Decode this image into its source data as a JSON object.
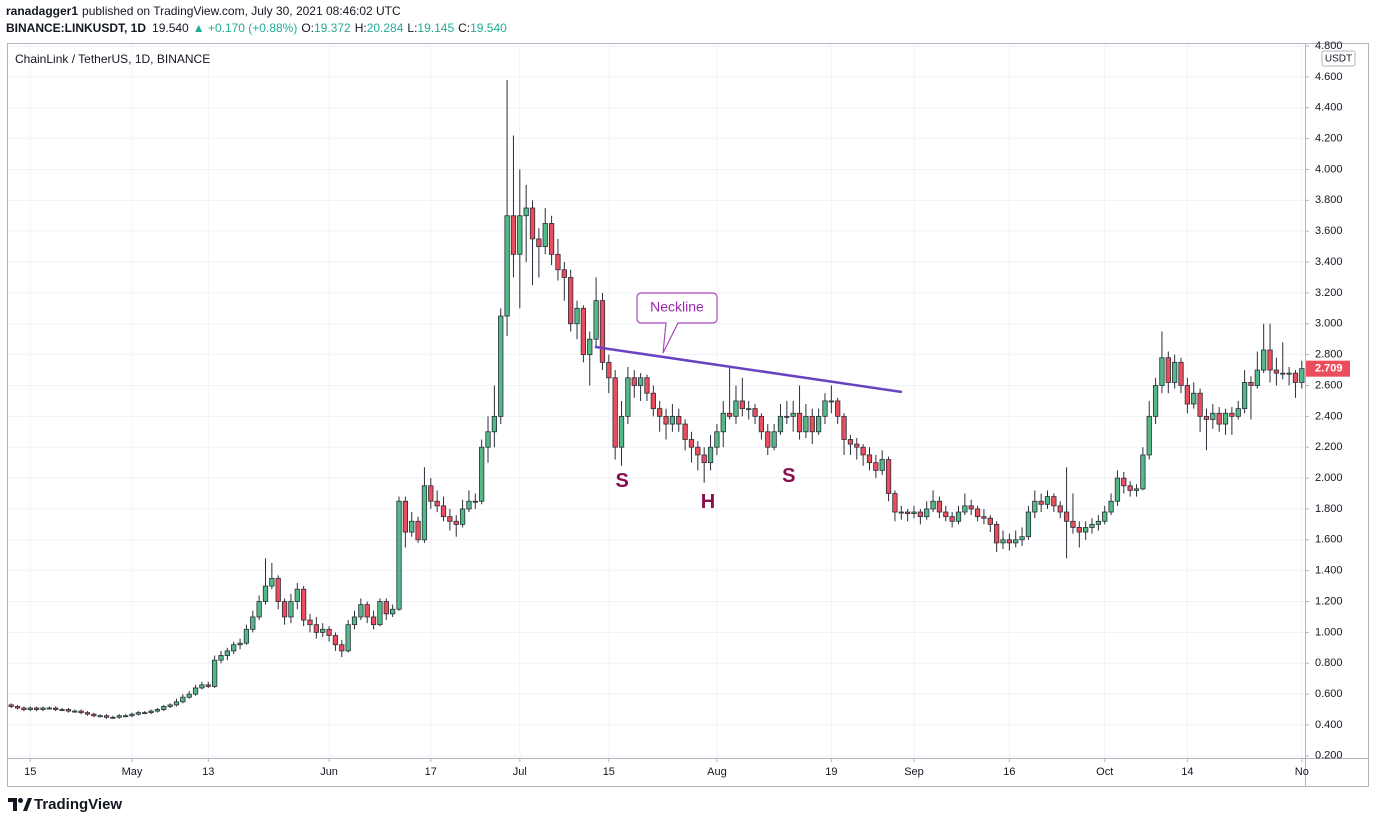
{
  "header": {
    "author": "ranadagger1",
    "published": "published on TradingView.com, July 30, 2021 08:46:02 UTC",
    "symbol": "BINANCE:LINKUSDT, 1D",
    "last": "19.540",
    "change": "▲ +0.170 (+0.88%)",
    "o_label": "O:",
    "o": "19.372",
    "h_label": "H:",
    "h": "20.284",
    "l_label": "L:",
    "l": "19.145",
    "c_label": "C:",
    "c": "19.540"
  },
  "chart_data": {
    "type": "candlestick",
    "title": "ChainLink / TetherUS, 1D, BINANCE",
    "currency": "USDT",
    "up_color": "#53b987",
    "down_color": "#eb4d5c",
    "grid": true,
    "candles": [
      [
        0.53,
        0.54,
        0.51,
        0.52
      ],
      [
        0.52,
        0.53,
        0.5,
        0.51
      ],
      [
        0.51,
        0.52,
        0.49,
        0.5
      ],
      [
        0.5,
        0.52,
        0.49,
        0.51
      ],
      [
        0.51,
        0.52,
        0.49,
        0.5
      ],
      [
        0.5,
        0.52,
        0.49,
        0.51
      ],
      [
        0.51,
        0.52,
        0.5,
        0.51
      ],
      [
        0.51,
        0.52,
        0.49,
        0.5
      ],
      [
        0.5,
        0.51,
        0.49,
        0.5
      ],
      [
        0.5,
        0.51,
        0.48,
        0.49
      ],
      [
        0.49,
        0.5,
        0.48,
        0.49
      ],
      [
        0.49,
        0.5,
        0.47,
        0.48
      ],
      [
        0.48,
        0.49,
        0.46,
        0.47
      ],
      [
        0.47,
        0.48,
        0.45,
        0.46
      ],
      [
        0.46,
        0.47,
        0.45,
        0.46
      ],
      [
        0.46,
        0.47,
        0.44,
        0.45
      ],
      [
        0.45,
        0.46,
        0.44,
        0.45
      ],
      [
        0.45,
        0.47,
        0.44,
        0.46
      ],
      [
        0.46,
        0.47,
        0.45,
        0.46
      ],
      [
        0.46,
        0.48,
        0.45,
        0.47
      ],
      [
        0.47,
        0.49,
        0.46,
        0.48
      ],
      [
        0.48,
        0.49,
        0.47,
        0.48
      ],
      [
        0.48,
        0.5,
        0.47,
        0.49
      ],
      [
        0.49,
        0.51,
        0.48,
        0.5
      ],
      [
        0.5,
        0.53,
        0.49,
        0.52
      ],
      [
        0.52,
        0.54,
        0.51,
        0.53
      ],
      [
        0.53,
        0.57,
        0.52,
        0.55
      ],
      [
        0.55,
        0.6,
        0.54,
        0.58
      ],
      [
        0.58,
        0.62,
        0.57,
        0.6
      ],
      [
        0.6,
        0.66,
        0.59,
        0.64
      ],
      [
        0.64,
        0.68,
        0.63,
        0.66
      ],
      [
        0.66,
        0.68,
        0.64,
        0.65
      ],
      [
        0.65,
        0.85,
        0.64,
        0.82
      ],
      [
        0.82,
        0.88,
        0.8,
        0.85
      ],
      [
        0.85,
        0.9,
        0.82,
        0.88
      ],
      [
        0.88,
        0.94,
        0.86,
        0.92
      ],
      [
        0.92,
        0.96,
        0.89,
        0.93
      ],
      [
        0.93,
        1.05,
        0.92,
        1.02
      ],
      [
        1.02,
        1.14,
        1.0,
        1.1
      ],
      [
        1.1,
        1.24,
        1.08,
        1.2
      ],
      [
        1.2,
        1.48,
        1.18,
        1.3
      ],
      [
        1.3,
        1.45,
        1.28,
        1.35
      ],
      [
        1.35,
        1.37,
        1.15,
        1.2
      ],
      [
        1.2,
        1.22,
        1.05,
        1.1
      ],
      [
        1.1,
        1.25,
        1.06,
        1.2
      ],
      [
        1.2,
        1.32,
        1.15,
        1.28
      ],
      [
        1.28,
        1.3,
        1.04,
        1.08
      ],
      [
        1.08,
        1.12,
        1.0,
        1.05
      ],
      [
        1.05,
        1.1,
        0.96,
        1.0
      ],
      [
        1.0,
        1.06,
        0.97,
        1.02
      ],
      [
        1.02,
        1.04,
        0.94,
        0.98
      ],
      [
        0.98,
        1.0,
        0.88,
        0.92
      ],
      [
        0.92,
        0.95,
        0.84,
        0.88
      ],
      [
        0.88,
        1.08,
        0.87,
        1.05
      ],
      [
        1.05,
        1.14,
        1.02,
        1.1
      ],
      [
        1.1,
        1.22,
        1.08,
        1.18
      ],
      [
        1.18,
        1.2,
        1.06,
        1.1
      ],
      [
        1.1,
        1.14,
        1.02,
        1.05
      ],
      [
        1.05,
        1.22,
        1.04,
        1.2
      ],
      [
        1.2,
        1.22,
        1.08,
        1.12
      ],
      [
        1.12,
        1.18,
        1.1,
        1.15
      ],
      [
        1.15,
        1.88,
        1.14,
        1.85
      ],
      [
        1.85,
        1.88,
        1.55,
        1.65
      ],
      [
        1.65,
        1.78,
        1.62,
        1.72
      ],
      [
        1.72,
        1.75,
        1.58,
        1.6
      ],
      [
        1.6,
        2.07,
        1.58,
        1.95
      ],
      [
        1.95,
        2.0,
        1.8,
        1.85
      ],
      [
        1.85,
        1.92,
        1.78,
        1.82
      ],
      [
        1.82,
        1.88,
        1.72,
        1.75
      ],
      [
        1.75,
        1.8,
        1.66,
        1.72
      ],
      [
        1.72,
        1.76,
        1.62,
        1.7
      ],
      [
        1.7,
        1.86,
        1.68,
        1.8
      ],
      [
        1.8,
        1.92,
        1.78,
        1.85
      ],
      [
        1.85,
        1.9,
        1.8,
        1.85
      ],
      [
        1.85,
        2.25,
        1.83,
        2.2
      ],
      [
        2.2,
        2.4,
        2.1,
        2.3
      ],
      [
        2.3,
        2.6,
        2.2,
        2.4
      ],
      [
        2.4,
        3.1,
        2.35,
        3.05
      ],
      [
        3.05,
        4.58,
        2.92,
        3.7
      ],
      [
        3.7,
        4.22,
        3.3,
        3.45
      ],
      [
        3.45,
        4.0,
        3.1,
        3.7
      ],
      [
        3.7,
        3.9,
        3.4,
        3.75
      ],
      [
        3.75,
        3.8,
        3.25,
        3.55
      ],
      [
        3.55,
        3.62,
        3.3,
        3.5
      ],
      [
        3.5,
        3.75,
        3.45,
        3.65
      ],
      [
        3.65,
        3.7,
        3.38,
        3.45
      ],
      [
        3.45,
        3.55,
        3.28,
        3.35
      ],
      [
        3.35,
        3.4,
        3.15,
        3.3
      ],
      [
        3.3,
        3.35,
        2.95,
        3.0
      ],
      [
        3.0,
        3.15,
        2.9,
        3.1
      ],
      [
        3.1,
        3.12,
        2.75,
        2.8
      ],
      [
        2.8,
        2.95,
        2.6,
        2.9
      ],
      [
        2.9,
        3.3,
        2.85,
        3.15
      ],
      [
        3.15,
        3.2,
        2.7,
        2.75
      ],
      [
        2.75,
        2.8,
        2.55,
        2.65
      ],
      [
        2.65,
        2.7,
        2.12,
        2.2
      ],
      [
        2.2,
        2.5,
        2.08,
        2.4
      ],
      [
        2.4,
        2.72,
        2.35,
        2.65
      ],
      [
        2.65,
        2.7,
        2.52,
        2.6
      ],
      [
        2.6,
        2.68,
        2.5,
        2.65
      ],
      [
        2.65,
        2.67,
        2.5,
        2.55
      ],
      [
        2.55,
        2.6,
        2.4,
        2.45
      ],
      [
        2.45,
        2.5,
        2.3,
        2.4
      ],
      [
        2.4,
        2.45,
        2.25,
        2.35
      ],
      [
        2.35,
        2.48,
        2.3,
        2.4
      ],
      [
        2.4,
        2.45,
        2.3,
        2.35
      ],
      [
        2.35,
        2.38,
        2.18,
        2.25
      ],
      [
        2.25,
        2.3,
        2.1,
        2.2
      ],
      [
        2.2,
        2.24,
        2.05,
        2.15
      ],
      [
        2.15,
        2.2,
        1.97,
        2.1
      ],
      [
        2.1,
        2.28,
        2.05,
        2.2
      ],
      [
        2.2,
        2.35,
        2.15,
        2.3
      ],
      [
        2.3,
        2.5,
        2.2,
        2.42
      ],
      [
        2.42,
        2.72,
        2.38,
        2.4
      ],
      [
        2.4,
        2.6,
        2.35,
        2.5
      ],
      [
        2.5,
        2.65,
        2.4,
        2.45
      ],
      [
        2.45,
        2.5,
        2.38,
        2.45
      ],
      [
        2.45,
        2.48,
        2.35,
        2.4
      ],
      [
        2.4,
        2.42,
        2.25,
        2.3
      ],
      [
        2.3,
        2.35,
        2.15,
        2.2
      ],
      [
        2.2,
        2.35,
        2.18,
        2.3
      ],
      [
        2.3,
        2.48,
        2.28,
        2.4
      ],
      [
        2.4,
        2.5,
        2.35,
        2.4
      ],
      [
        2.4,
        2.5,
        2.3,
        2.42
      ],
      [
        2.42,
        2.6,
        2.25,
        2.3
      ],
      [
        2.3,
        2.48,
        2.26,
        2.4
      ],
      [
        2.4,
        2.45,
        2.22,
        2.3
      ],
      [
        2.3,
        2.45,
        2.28,
        2.4
      ],
      [
        2.4,
        2.55,
        2.35,
        2.5
      ],
      [
        2.5,
        2.6,
        2.42,
        2.5
      ],
      [
        2.5,
        2.52,
        2.35,
        2.4
      ],
      [
        2.4,
        2.42,
        2.15,
        2.25
      ],
      [
        2.25,
        2.28,
        2.15,
        2.22
      ],
      [
        2.22,
        2.26,
        2.12,
        2.2
      ],
      [
        2.2,
        2.22,
        2.08,
        2.15
      ],
      [
        2.15,
        2.2,
        2.05,
        2.1
      ],
      [
        2.1,
        2.15,
        2.0,
        2.05
      ],
      [
        2.05,
        2.18,
        2.02,
        2.12
      ],
      [
        2.12,
        2.14,
        1.85,
        1.9
      ],
      [
        1.9,
        1.92,
        1.72,
        1.78
      ],
      [
        1.78,
        1.82,
        1.73,
        1.78
      ],
      [
        1.78,
        1.8,
        1.72,
        1.77
      ],
      [
        1.77,
        1.82,
        1.74,
        1.78
      ],
      [
        1.78,
        1.8,
        1.7,
        1.75
      ],
      [
        1.75,
        1.85,
        1.73,
        1.8
      ],
      [
        1.8,
        1.92,
        1.78,
        1.85
      ],
      [
        1.85,
        1.88,
        1.74,
        1.78
      ],
      [
        1.78,
        1.82,
        1.72,
        1.75
      ],
      [
        1.75,
        1.78,
        1.68,
        1.72
      ],
      [
        1.72,
        1.82,
        1.7,
        1.78
      ],
      [
        1.78,
        1.9,
        1.76,
        1.82
      ],
      [
        1.82,
        1.86,
        1.76,
        1.8
      ],
      [
        1.8,
        1.82,
        1.72,
        1.75
      ],
      [
        1.75,
        1.8,
        1.7,
        1.74
      ],
      [
        1.74,
        1.76,
        1.65,
        1.7
      ],
      [
        1.7,
        1.72,
        1.52,
        1.58
      ],
      [
        1.58,
        1.66,
        1.54,
        1.6
      ],
      [
        1.6,
        1.64,
        1.53,
        1.58
      ],
      [
        1.58,
        1.66,
        1.55,
        1.6
      ],
      [
        1.6,
        1.68,
        1.56,
        1.62
      ],
      [
        1.62,
        1.82,
        1.6,
        1.78
      ],
      [
        1.78,
        1.92,
        1.74,
        1.85
      ],
      [
        1.85,
        1.9,
        1.78,
        1.83
      ],
      [
        1.83,
        1.92,
        1.8,
        1.88
      ],
      [
        1.88,
        1.9,
        1.78,
        1.82
      ],
      [
        1.82,
        1.85,
        1.74,
        1.78
      ],
      [
        1.78,
        2.07,
        1.48,
        1.72
      ],
      [
        1.72,
        1.9,
        1.64,
        1.68
      ],
      [
        1.68,
        1.72,
        1.55,
        1.65
      ],
      [
        1.65,
        1.72,
        1.6,
        1.68
      ],
      [
        1.68,
        1.74,
        1.64,
        1.7
      ],
      [
        1.7,
        1.76,
        1.66,
        1.72
      ],
      [
        1.72,
        1.82,
        1.7,
        1.78
      ],
      [
        1.78,
        1.9,
        1.76,
        1.85
      ],
      [
        1.85,
        2.05,
        1.82,
        2.0
      ],
      [
        2.0,
        2.04,
        1.9,
        1.95
      ],
      [
        1.95,
        1.98,
        1.88,
        1.92
      ],
      [
        1.92,
        1.96,
        1.88,
        1.93
      ],
      [
        1.93,
        2.2,
        1.92,
        2.15
      ],
      [
        2.15,
        2.5,
        2.12,
        2.4
      ],
      [
        2.4,
        2.65,
        2.35,
        2.6
      ],
      [
        2.6,
        2.95,
        2.55,
        2.78
      ],
      [
        2.78,
        2.82,
        2.55,
        2.62
      ],
      [
        2.62,
        2.8,
        2.58,
        2.75
      ],
      [
        2.75,
        2.78,
        2.55,
        2.6
      ],
      [
        2.6,
        2.65,
        2.42,
        2.48
      ],
      [
        2.48,
        2.62,
        2.45,
        2.55
      ],
      [
        2.55,
        2.58,
        2.3,
        2.4
      ],
      [
        2.4,
        2.45,
        2.18,
        2.38
      ],
      [
        2.38,
        2.48,
        2.32,
        2.42
      ],
      [
        2.42,
        2.46,
        2.3,
        2.35
      ],
      [
        2.35,
        2.45,
        2.28,
        2.42
      ],
      [
        2.42,
        2.46,
        2.28,
        2.4
      ],
      [
        2.4,
        2.5,
        2.38,
        2.45
      ],
      [
        2.45,
        2.7,
        2.42,
        2.62
      ],
      [
        2.62,
        2.66,
        2.38,
        2.6
      ],
      [
        2.6,
        2.82,
        2.58,
        2.7
      ],
      [
        2.7,
        3.0,
        2.68,
        2.83
      ],
      [
        2.83,
        3.0,
        2.62,
        2.7
      ],
      [
        2.7,
        2.78,
        2.6,
        2.68
      ],
      [
        2.68,
        2.88,
        2.64,
        2.68
      ],
      [
        2.68,
        2.72,
        2.6,
        2.68
      ],
      [
        2.68,
        2.7,
        2.52,
        2.62
      ],
      [
        2.62,
        2.76,
        2.58,
        2.709
      ]
    ],
    "xlim": [
      -0.5,
      203.5
    ],
    "xticks": [
      {
        "value": 3,
        "label": "15"
      },
      {
        "value": 19,
        "label": "May"
      },
      {
        "value": 31,
        "label": "13"
      },
      {
        "value": 50,
        "label": "Jun"
      },
      {
        "value": 66,
        "label": "17"
      },
      {
        "value": 80,
        "label": "Jul"
      },
      {
        "value": 94,
        "label": "15"
      },
      {
        "value": 111,
        "label": "Aug"
      },
      {
        "value": 129,
        "label": "19"
      },
      {
        "value": 142,
        "label": "Sep"
      },
      {
        "value": 157,
        "label": "16"
      },
      {
        "value": 172,
        "label": "Oct"
      },
      {
        "value": 185,
        "label": "14"
      },
      {
        "value": 203,
        "label": "No"
      }
    ],
    "ylim": [
      0.186,
      4.813
    ],
    "yticks": [
      {
        "value": 0.2,
        "label": "0.200"
      },
      {
        "value": 0.4,
        "label": "0.400"
      },
      {
        "value": 0.6,
        "label": "0.600"
      },
      {
        "value": 0.8,
        "label": "0.800"
      },
      {
        "value": 1.0,
        "label": "1.000"
      },
      {
        "value": 1.2,
        "label": "1.200"
      },
      {
        "value": 1.4,
        "label": "1.400"
      },
      {
        "value": 1.6,
        "label": "1.600"
      },
      {
        "value": 1.8,
        "label": "1.800"
      },
      {
        "value": 2.0,
        "label": "2.000"
      },
      {
        "value": 2.2,
        "label": "2.200"
      },
      {
        "value": 2.4,
        "label": "2.400"
      },
      {
        "value": 2.6,
        "label": "2.600"
      },
      {
        "value": 2.8,
        "label": "2.800"
      },
      {
        "value": 3.0,
        "label": "3.000"
      },
      {
        "value": 3.2,
        "label": "3.200"
      },
      {
        "value": 3.4,
        "label": "3.400"
      },
      {
        "value": 3.6,
        "label": "3.600"
      },
      {
        "value": 3.8,
        "label": "3.800"
      },
      {
        "value": 4.0,
        "label": "4.000"
      },
      {
        "value": 4.2,
        "label": "4.200"
      },
      {
        "value": 4.4,
        "label": "4.400"
      },
      {
        "value": 4.6,
        "label": "4.600"
      },
      {
        "value": 4.8,
        "label": "4.800"
      }
    ],
    "neckline": {
      "label": "Neckline",
      "color": "#6a42c2",
      "x": [
        91.8,
        140.1
      ],
      "y": [
        2.85,
        2.558
      ]
    },
    "annotations": [
      {
        "text": "S",
        "x": 96.1,
        "y": 1.975
      },
      {
        "text": "H",
        "x": 109.6,
        "y": 1.84
      },
      {
        "text": "S",
        "x": 122.3,
        "y": 2.01
      }
    ]
  },
  "footer": {
    "brand": "TradingView"
  }
}
